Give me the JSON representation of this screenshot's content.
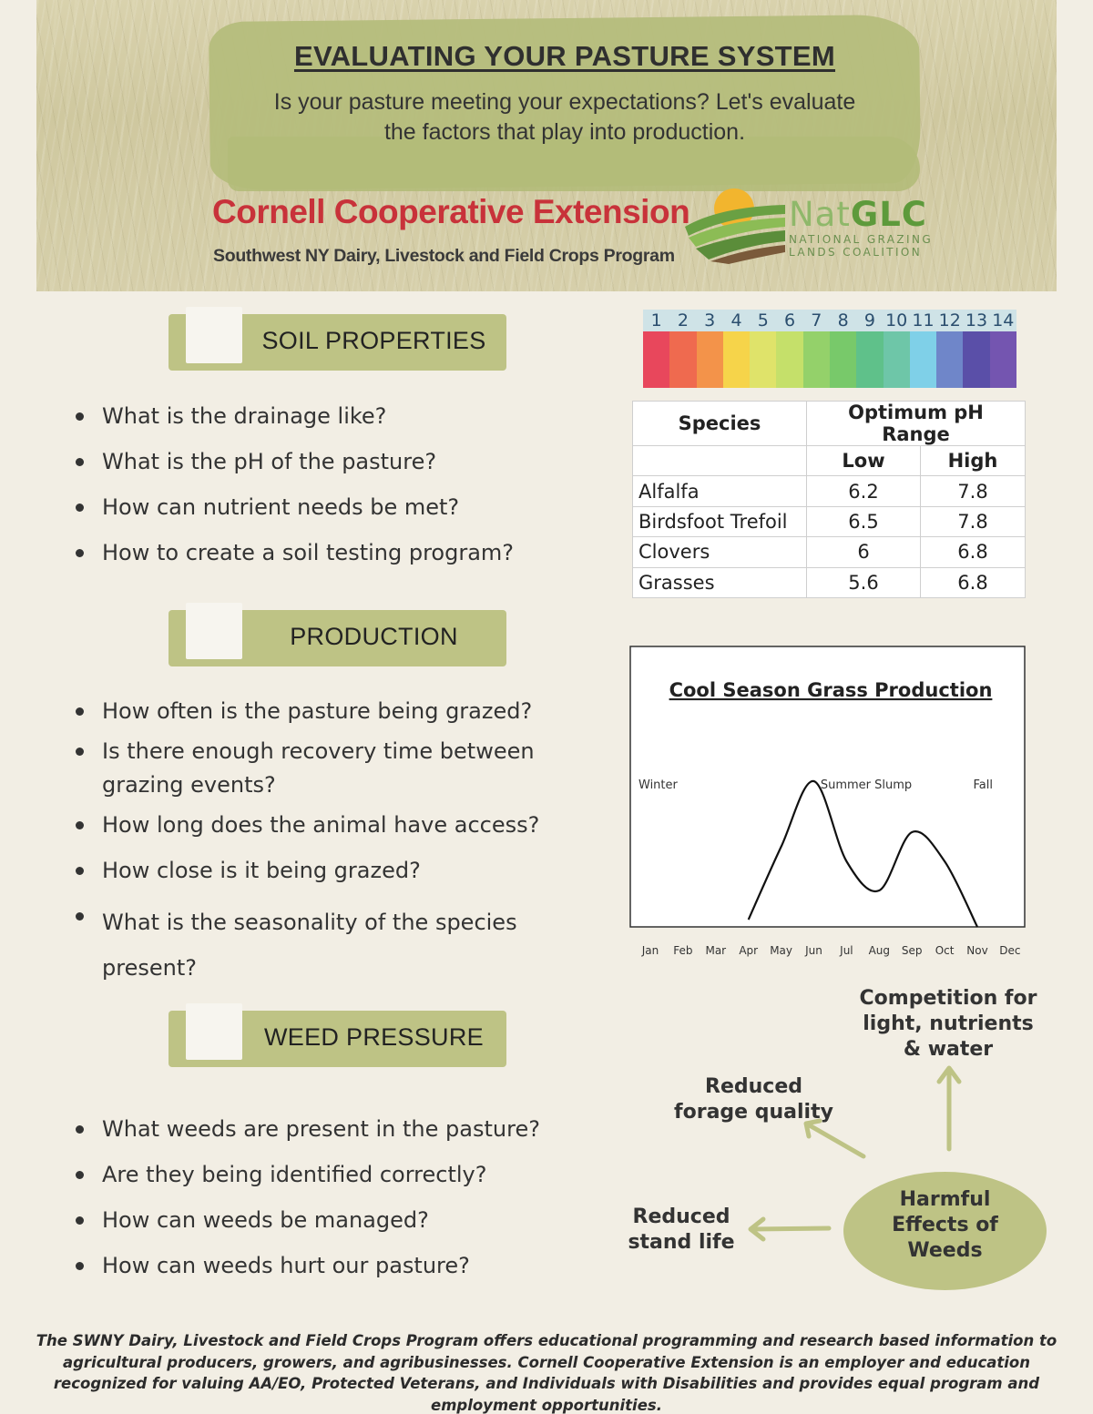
{
  "header": {
    "title": "EVALUATING YOUR PASTURE SYSTEM",
    "subtitle": "Is your pasture meeting your expectations? Let's evaluate the factors that play into production.",
    "org_name": "Cornell Cooperative Extension",
    "program_name": "Southwest NY Dairy, Livestock and Field Crops Program",
    "partner_logo": {
      "nat": "Nat",
      "glc": "GLC",
      "line1": "NATIONAL GRAZING",
      "line2": "LANDS COALITION"
    }
  },
  "sections": {
    "soil": {
      "title": "SOIL PROPERTIES",
      "items": [
        "What is the drainage like?",
        "What is the pH of the pasture?",
        "How can nutrient needs be met?",
        "How to create a soil testing program?"
      ]
    },
    "production": {
      "title": "PRODUCTION",
      "items": [
        "How often is the pasture being grazed?",
        "Is there enough recovery time between grazing events?",
        "How long does the animal have access?",
        "How close is it being grazed?",
        "What is the seasonality of the species present?"
      ]
    },
    "weeds": {
      "title": "WEED PRESSURE",
      "items": [
        "What weeds are present in the pasture?",
        "Are they being identified correctly?",
        "How can weeds be managed?",
        "How can weeds hurt our pasture?"
      ]
    }
  },
  "ph_scale": {
    "numbers": [
      "1",
      "2",
      "3",
      "4",
      "5",
      "6",
      "7",
      "8",
      "9",
      "10",
      "11",
      "12",
      "13",
      "14"
    ],
    "colors": [
      "#e8475c",
      "#ef6a4f",
      "#f3934a",
      "#f6d44a",
      "#dfe36a",
      "#c5e06a",
      "#94d16a",
      "#78c96a",
      "#5fc18a",
      "#6ec6a8",
      "#7fd0e8",
      "#6f86c9",
      "#5a4fa8",
      "#7455b0"
    ]
  },
  "ph_table": {
    "headers": {
      "species": "Species",
      "range": "Optimum pH Range",
      "low": "Low",
      "high": "High"
    },
    "rows": [
      {
        "species": "Alfalfa",
        "low": "6.2",
        "high": "7.8"
      },
      {
        "species": "Birdsfoot Trefoil",
        "low": "6.5",
        "high": "7.8"
      },
      {
        "species": "Clovers",
        "low": "6",
        "high": "6.8"
      },
      {
        "species": "Grasses",
        "low": "5.6",
        "high": "6.8"
      }
    ]
  },
  "chart_data": {
    "type": "line",
    "title": "Cool Season Grass Production",
    "categories": [
      "Jan",
      "Feb",
      "Mar",
      "Apr",
      "May",
      "Jun",
      "Jul",
      "Aug",
      "Sep",
      "Oct",
      "Nov",
      "Dec"
    ],
    "annotations": [
      "Winter",
      "Summer Slump",
      "Fall"
    ],
    "series": [
      {
        "name": "",
        "values": [
          0,
          0,
          0,
          0.05,
          0.55,
          1.0,
          0.45,
          0.25,
          0.65,
          0.45,
          0,
          0
        ]
      }
    ],
    "ylim": [
      0,
      1
    ],
    "grid": false
  },
  "weeds_diagram": {
    "center": "Harmful Effects of Weeds",
    "effects": {
      "competition": "Competition for light, nutrients & water",
      "forage": "Reduced forage quality",
      "stand": "Reduced stand life"
    },
    "accent": "#bec385"
  },
  "footer": "The SWNY Dairy, Livestock and Field Crops Program offers educational programming and research based information to agricultural producers, growers, and agribusinesses. Cornell Cooperative Extension is an employer and education recognized for valuing AA/EO, Protected Veterans, and Individuals with Disabilities and provides equal program and employment opportunities."
}
